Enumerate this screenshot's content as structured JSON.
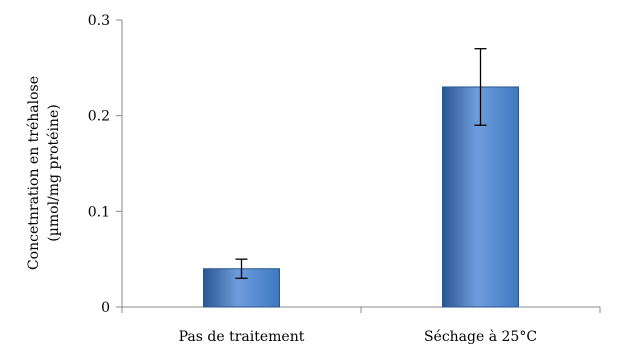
{
  "chart_data": {
    "type": "bar",
    "title": "",
    "xlabel": "",
    "ylabel_lines": [
      "Concetnration en tréhalose",
      "(µmol/mg protéine)"
    ],
    "categories": [
      "Pas de traitement",
      "Séchage à 25°C"
    ],
    "values": [
      0.04,
      0.23
    ],
    "error_bars": [
      0.01,
      0.04
    ],
    "ylim": [
      0,
      0.3
    ],
    "yticks": [
      0,
      0.1,
      0.2,
      0.3
    ],
    "ytick_labels": [
      "0",
      "0.1",
      "0.2",
      "0.3"
    ],
    "grid": false,
    "legend": "none",
    "bar_color": "#3f78c0",
    "bar_color_light": "#6e9ddc",
    "bar_color_dark": "#2a5690"
  }
}
